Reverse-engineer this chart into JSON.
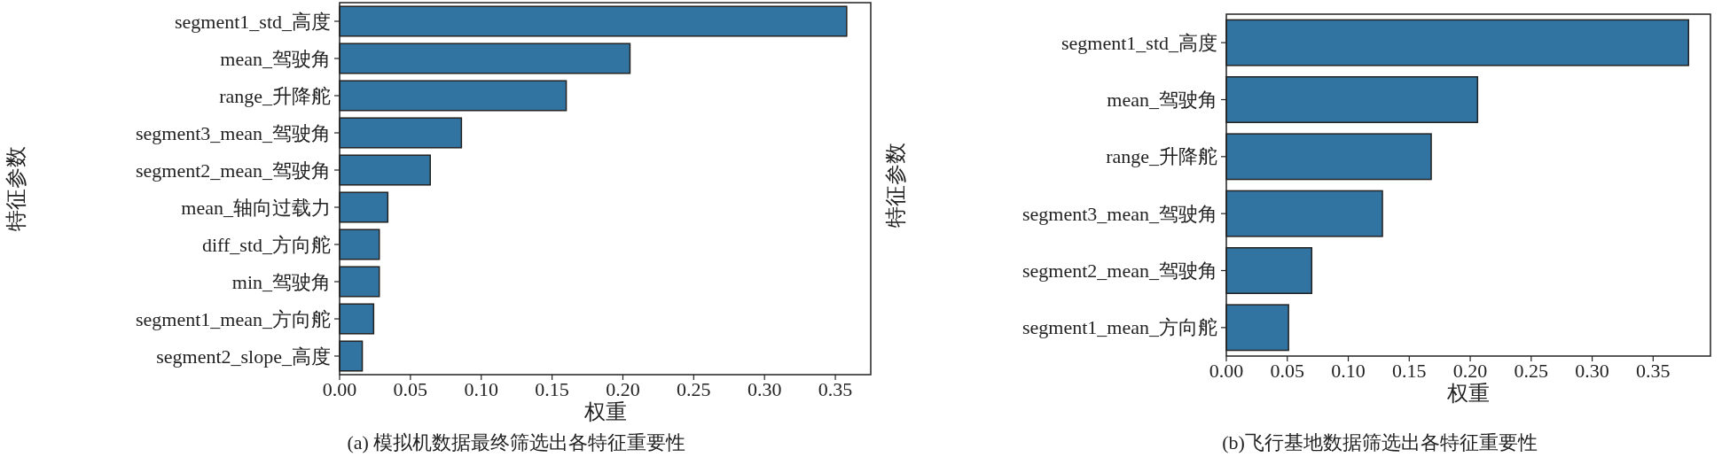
{
  "chart_data": [
    {
      "type": "bar",
      "orientation": "horizontal",
      "xlabel": "权重",
      "ylabel": "特征参数",
      "annotations": [
        "(a) 模拟机数据最终筛选出各特征重要性"
      ],
      "categories": [
        "segment1_std_高度",
        "mean_驾驶角",
        "range_升降舵",
        "segment3_mean_驾驶角",
        "segment2_mean_驾驶角",
        "mean_轴向过载力",
        "diff_std_方向舵",
        "min_驾驶角",
        "segment1_mean_方向舵",
        "segment2_slope_高度"
      ],
      "values": [
        0.358,
        0.205,
        0.16,
        0.086,
        0.064,
        0.034,
        0.028,
        0.028,
        0.024,
        0.016
      ],
      "color": "#3274a1",
      "xlim": [
        0,
        0.375
      ],
      "xticks": [
        {
          "value": 0,
          "label": "0.00"
        },
        {
          "value": 0.05,
          "label": "0.05"
        },
        {
          "value": 0.1,
          "label": "0.10"
        },
        {
          "value": 0.15,
          "label": "0.15"
        },
        {
          "value": 0.2,
          "label": "0.20"
        },
        {
          "value": 0.25,
          "label": "0.25"
        },
        {
          "value": 0.3,
          "label": "0.30"
        },
        {
          "value": 0.35,
          "label": "0.35"
        }
      ],
      "grid": false
    },
    {
      "type": "bar",
      "orientation": "horizontal",
      "xlabel": "权重",
      "ylabel": "特征参数",
      "annotations": [
        "(b)飞行基地数据筛选出各特征重要性"
      ],
      "categories": [
        "segment1_std_高度",
        "mean_驾驶角",
        "range_升降舵",
        "segment3_mean_驾驶角",
        "segment2_mean_驾驶角",
        "segment1_mean_方向舵"
      ],
      "values": [
        0.379,
        0.206,
        0.168,
        0.128,
        0.07,
        0.051
      ],
      "color": "#3274a1",
      "xlim": [
        0,
        0.397
      ],
      "xticks": [
        {
          "value": 0,
          "label": "0.00"
        },
        {
          "value": 0.05,
          "label": "0.05"
        },
        {
          "value": 0.1,
          "label": "0.10"
        },
        {
          "value": 0.15,
          "label": "0.15"
        },
        {
          "value": 0.2,
          "label": "0.20"
        },
        {
          "value": 0.25,
          "label": "0.25"
        },
        {
          "value": 0.3,
          "label": "0.30"
        },
        {
          "value": 0.35,
          "label": "0.35"
        }
      ],
      "grid": false
    }
  ]
}
